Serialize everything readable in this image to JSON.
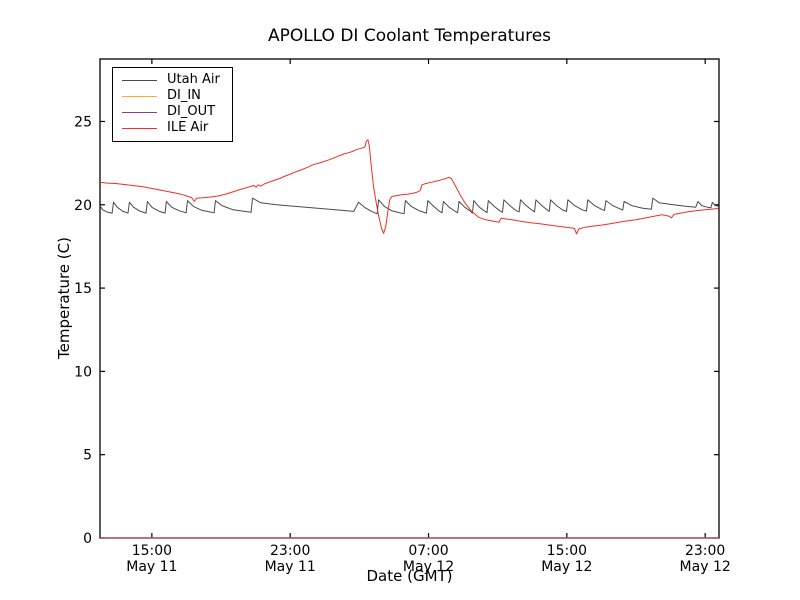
{
  "chart_data": {
    "type": "line",
    "title": "APOLLO DI Coolant Temperatures",
    "xlabel": "Date (GMT)",
    "ylabel": "Temperature (C)",
    "grid": false,
    "legend_position": "upper left",
    "ylim": [
      0,
      28.75
    ],
    "yticks": [
      0,
      5,
      10,
      15,
      20,
      25
    ],
    "x_axis_note": "x values are hours; 0 = left edge of plot (~12:00 May 11), ticks every 8 hours",
    "xlim_hours": [
      0,
      35.8
    ],
    "xticks": [
      {
        "h": 3,
        "time": "15:00",
        "date": "May 11"
      },
      {
        "h": 11,
        "time": "23:00",
        "date": "May 11"
      },
      {
        "h": 19,
        "time": "07:00",
        "date": "May 12"
      },
      {
        "h": 27,
        "time": "15:00",
        "date": "May 12"
      },
      {
        "h": 35,
        "time": "23:00",
        "date": "May 12"
      }
    ],
    "series": [
      {
        "name": "Utah Air",
        "color": "#4a4a4a",
        "width": 1.0,
        "opacity": 1,
        "points": [
          [
            0,
            19.95
          ],
          [
            0.15,
            19.7
          ],
          [
            0.45,
            19.55
          ],
          [
            0.7,
            19.5
          ],
          [
            0.78,
            20.15
          ],
          [
            1.0,
            19.85
          ],
          [
            1.3,
            19.62
          ],
          [
            1.62,
            19.5
          ],
          [
            1.7,
            20.15
          ],
          [
            1.95,
            19.85
          ],
          [
            2.3,
            19.62
          ],
          [
            2.66,
            19.5
          ],
          [
            2.74,
            20.2
          ],
          [
            3.0,
            19.85
          ],
          [
            3.4,
            19.62
          ],
          [
            3.76,
            19.5
          ],
          [
            3.84,
            20.2
          ],
          [
            4.15,
            19.85
          ],
          [
            4.6,
            19.64
          ],
          [
            4.98,
            19.52
          ],
          [
            5.06,
            20.25
          ],
          [
            5.4,
            19.9
          ],
          [
            5.9,
            19.66
          ],
          [
            6.6,
            19.52
          ],
          [
            6.68,
            20.25
          ],
          [
            7.05,
            19.95
          ],
          [
            7.7,
            19.7
          ],
          [
            8.74,
            19.55
          ],
          [
            8.82,
            20.4
          ],
          [
            9.3,
            20.12
          ],
          [
            10.2,
            20.0
          ],
          [
            11.3,
            19.9
          ],
          [
            12.5,
            19.8
          ],
          [
            13.6,
            19.7
          ],
          [
            14.68,
            19.6
          ],
          [
            14.95,
            20.15
          ],
          [
            15.3,
            19.85
          ],
          [
            15.7,
            19.6
          ],
          [
            16.03,
            19.46
          ],
          [
            16.11,
            20.3
          ],
          [
            16.45,
            19.9
          ],
          [
            16.85,
            19.65
          ],
          [
            17.58,
            19.46
          ],
          [
            17.66,
            20.25
          ],
          [
            18.0,
            19.9
          ],
          [
            18.45,
            19.65
          ],
          [
            18.88,
            19.5
          ],
          [
            18.96,
            20.25
          ],
          [
            19.3,
            19.9
          ],
          [
            19.62,
            19.62
          ],
          [
            19.78,
            19.52
          ],
          [
            19.86,
            20.2
          ],
          [
            20.2,
            19.85
          ],
          [
            20.52,
            19.62
          ],
          [
            20.68,
            19.52
          ],
          [
            20.76,
            20.2
          ],
          [
            21.1,
            19.85
          ],
          [
            21.42,
            19.62
          ],
          [
            21.54,
            19.5
          ],
          [
            21.62,
            20.25
          ],
          [
            21.95,
            19.85
          ],
          [
            22.25,
            19.62
          ],
          [
            22.38,
            19.53
          ],
          [
            22.46,
            20.25
          ],
          [
            22.8,
            19.9
          ],
          [
            23.12,
            19.64
          ],
          [
            23.28,
            19.55
          ],
          [
            23.36,
            20.3
          ],
          [
            23.7,
            19.95
          ],
          [
            24.05,
            19.66
          ],
          [
            24.24,
            19.57
          ],
          [
            24.32,
            20.3
          ],
          [
            24.65,
            19.95
          ],
          [
            25.0,
            19.66
          ],
          [
            25.13,
            19.58
          ],
          [
            25.21,
            20.3
          ],
          [
            25.55,
            19.95
          ],
          [
            25.88,
            19.68
          ],
          [
            25.98,
            19.6
          ],
          [
            26.06,
            20.3
          ],
          [
            26.4,
            19.95
          ],
          [
            26.78,
            19.68
          ],
          [
            26.98,
            19.6
          ],
          [
            27.06,
            20.3
          ],
          [
            27.45,
            19.95
          ],
          [
            27.88,
            19.7
          ],
          [
            28.13,
            19.62
          ],
          [
            28.21,
            20.3
          ],
          [
            28.6,
            19.95
          ],
          [
            29.02,
            19.72
          ],
          [
            29.18,
            19.65
          ],
          [
            29.26,
            20.25
          ],
          [
            29.65,
            19.95
          ],
          [
            30.08,
            19.75
          ],
          [
            30.23,
            19.68
          ],
          [
            30.31,
            20.2
          ],
          [
            30.75,
            19.95
          ],
          [
            31.35,
            19.8
          ],
          [
            31.89,
            19.73
          ],
          [
            31.97,
            20.4
          ],
          [
            32.35,
            20.12
          ],
          [
            33.0,
            20.02
          ],
          [
            33.8,
            19.92
          ],
          [
            34.45,
            19.85
          ],
          [
            34.58,
            20.2
          ],
          [
            34.8,
            19.95
          ],
          [
            35.15,
            19.85
          ],
          [
            35.33,
            19.82
          ],
          [
            35.42,
            20.15
          ],
          [
            35.6,
            19.95
          ],
          [
            35.78,
            19.9
          ]
        ]
      },
      {
        "name": "DI_IN",
        "color": "#fdb025",
        "width": 1.2,
        "opacity": 1,
        "points": [
          [
            0,
            0
          ],
          [
            35.8,
            0
          ]
        ]
      },
      {
        "name": "DI_OUT",
        "color": "#8e3a8e",
        "width": 1.2,
        "opacity": 0.75,
        "points": [
          [
            0,
            0
          ],
          [
            35.8,
            0
          ]
        ]
      },
      {
        "name": "ILE Air",
        "color": "#f03028",
        "width": 1.0,
        "opacity": 1,
        "points": [
          [
            0,
            21.35
          ],
          [
            0.4,
            21.3
          ],
          [
            0.9,
            21.28
          ],
          [
            1.4,
            21.22
          ],
          [
            1.9,
            21.16
          ],
          [
            2.4,
            21.1
          ],
          [
            2.9,
            21.0
          ],
          [
            3.4,
            20.9
          ],
          [
            3.9,
            20.8
          ],
          [
            4.4,
            20.7
          ],
          [
            4.8,
            20.6
          ],
          [
            5.1,
            20.5
          ],
          [
            5.3,
            20.44
          ],
          [
            5.45,
            20.2
          ],
          [
            5.6,
            20.4
          ],
          [
            5.95,
            20.42
          ],
          [
            6.35,
            20.46
          ],
          [
            6.8,
            20.52
          ],
          [
            7.3,
            20.65
          ],
          [
            7.75,
            20.8
          ],
          [
            8.2,
            20.95
          ],
          [
            8.7,
            21.1
          ],
          [
            8.9,
            21.16
          ],
          [
            9.02,
            21.05
          ],
          [
            9.15,
            21.2
          ],
          [
            9.3,
            21.12
          ],
          [
            9.5,
            21.25
          ],
          [
            9.75,
            21.35
          ],
          [
            10.1,
            21.48
          ],
          [
            10.4,
            21.58
          ],
          [
            10.65,
            21.7
          ],
          [
            10.95,
            21.82
          ],
          [
            11.25,
            21.95
          ],
          [
            11.6,
            22.08
          ],
          [
            12.0,
            22.25
          ],
          [
            12.3,
            22.4
          ],
          [
            12.65,
            22.5
          ],
          [
            12.95,
            22.6
          ],
          [
            13.25,
            22.7
          ],
          [
            13.55,
            22.82
          ],
          [
            13.85,
            22.95
          ],
          [
            14.1,
            23.05
          ],
          [
            14.35,
            23.12
          ],
          [
            14.6,
            23.2
          ],
          [
            14.8,
            23.3
          ],
          [
            15.0,
            23.36
          ],
          [
            15.2,
            23.42
          ],
          [
            15.32,
            23.46
          ],
          [
            15.4,
            23.82
          ],
          [
            15.5,
            23.9
          ],
          [
            15.58,
            23.5
          ],
          [
            15.68,
            22.4
          ],
          [
            15.82,
            21.1
          ],
          [
            15.96,
            20.2
          ],
          [
            16.1,
            19.4
          ],
          [
            16.28,
            18.6
          ],
          [
            16.4,
            18.28
          ],
          [
            16.52,
            18.65
          ],
          [
            16.65,
            19.6
          ],
          [
            16.76,
            20.3
          ],
          [
            16.88,
            20.5
          ],
          [
            17.15,
            20.55
          ],
          [
            17.45,
            20.6
          ],
          [
            17.75,
            20.63
          ],
          [
            18.05,
            20.68
          ],
          [
            18.35,
            20.76
          ],
          [
            18.52,
            20.85
          ],
          [
            18.62,
            21.2
          ],
          [
            18.85,
            21.28
          ],
          [
            19.15,
            21.35
          ],
          [
            19.45,
            21.42
          ],
          [
            19.75,
            21.5
          ],
          [
            20.0,
            21.58
          ],
          [
            20.18,
            21.65
          ],
          [
            20.32,
            21.58
          ],
          [
            20.55,
            21.15
          ],
          [
            20.85,
            20.55
          ],
          [
            21.15,
            20.05
          ],
          [
            21.5,
            19.6
          ],
          [
            21.9,
            19.25
          ],
          [
            22.3,
            19.1
          ],
          [
            22.8,
            19.0
          ],
          [
            23.08,
            18.95
          ],
          [
            23.2,
            19.2
          ],
          [
            23.45,
            19.15
          ],
          [
            23.85,
            19.1
          ],
          [
            24.35,
            19.0
          ],
          [
            24.9,
            18.92
          ],
          [
            25.5,
            18.85
          ],
          [
            26.1,
            18.76
          ],
          [
            26.7,
            18.68
          ],
          [
            27.2,
            18.62
          ],
          [
            27.44,
            18.58
          ],
          [
            27.56,
            18.25
          ],
          [
            27.7,
            18.55
          ],
          [
            28.05,
            18.65
          ],
          [
            28.5,
            18.72
          ],
          [
            29.0,
            18.78
          ],
          [
            29.5,
            18.86
          ],
          [
            30.0,
            18.95
          ],
          [
            30.5,
            19.03
          ],
          [
            31.0,
            19.1
          ],
          [
            31.5,
            19.2
          ],
          [
            32.0,
            19.3
          ],
          [
            32.5,
            19.4
          ],
          [
            32.9,
            19.32
          ],
          [
            33.05,
            19.22
          ],
          [
            33.2,
            19.42
          ],
          [
            33.6,
            19.5
          ],
          [
            34.0,
            19.58
          ],
          [
            34.5,
            19.65
          ],
          [
            35.0,
            19.7
          ],
          [
            35.4,
            19.74
          ],
          [
            35.78,
            19.78
          ]
        ]
      }
    ]
  }
}
